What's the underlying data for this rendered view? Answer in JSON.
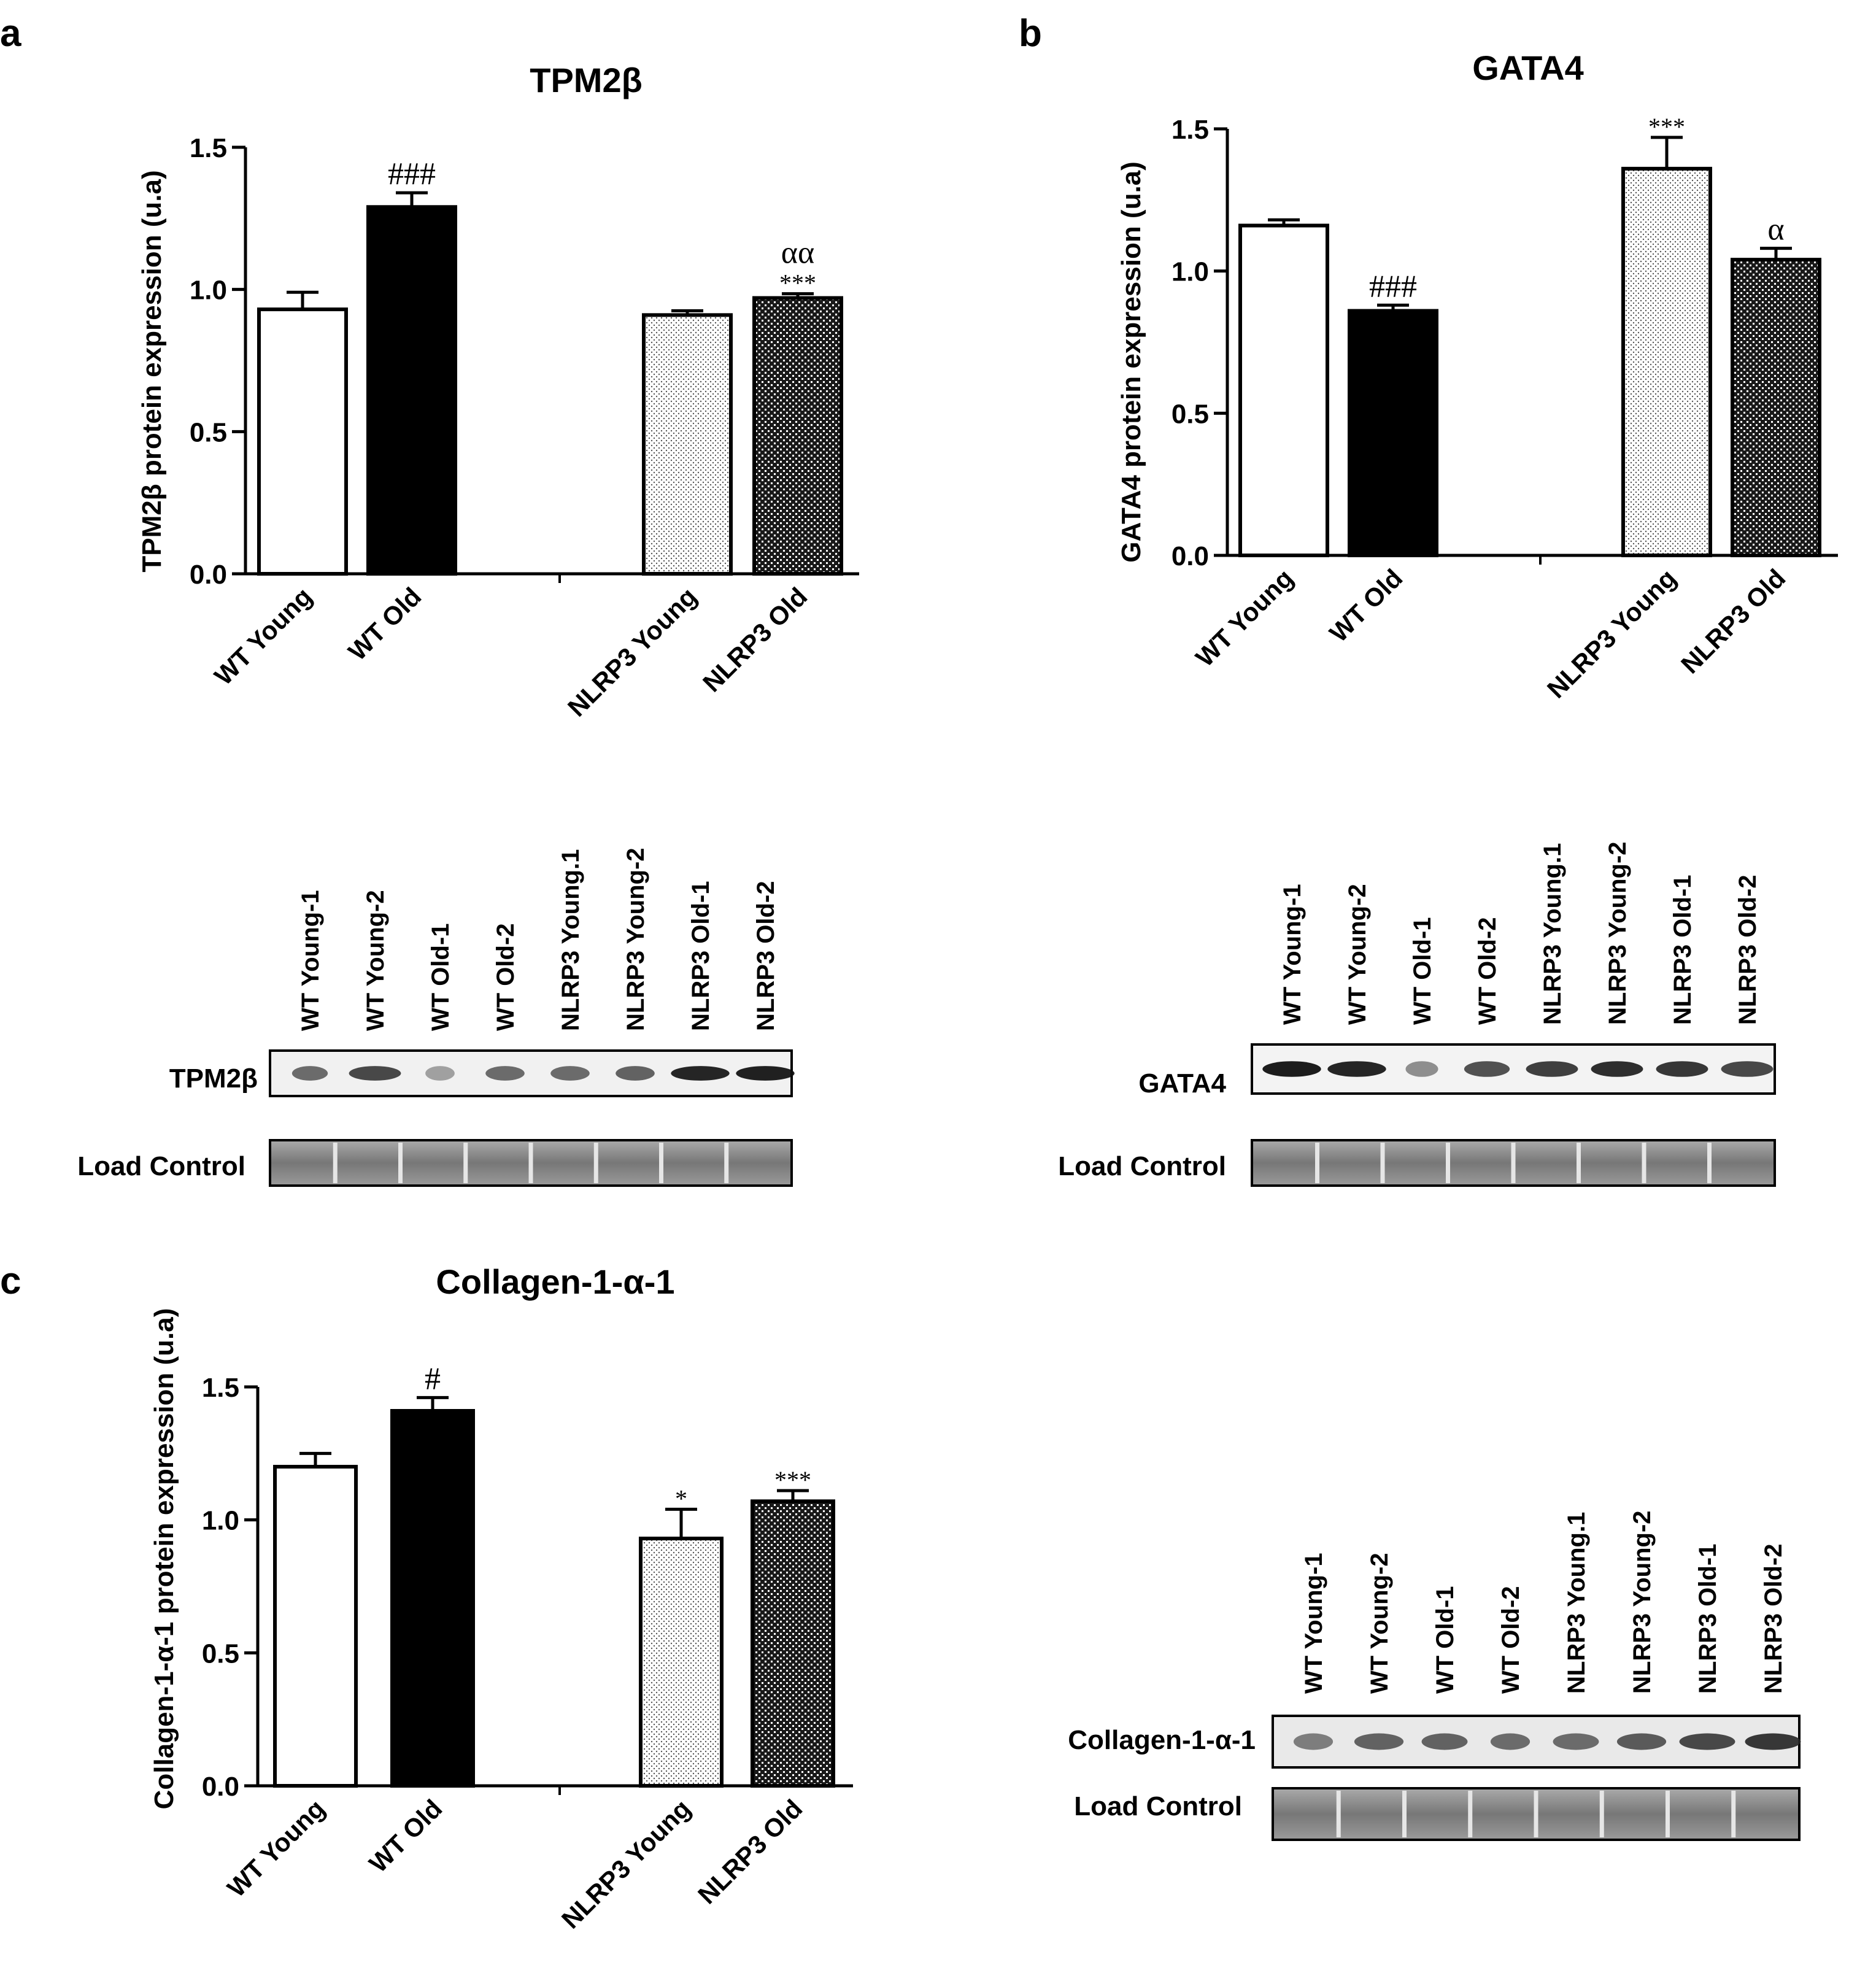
{
  "figure": {
    "blots": [
      {
        "lanes": [
          "WT Young-1",
          "WT Young-2",
          "WT Old-1",
          "WT Old-2",
          "NLRP3 Young.1",
          "NLRP3 Young-2",
          "NLRP3 Old-1",
          "NLRP3 Old-2"
        ],
        "protein_label": "TPM2β",
        "load_label": "Load Control"
      },
      {
        "lanes": [
          "WT Young-1",
          "WT Young-2",
          "WT Old-1",
          "WT Old-2",
          "NLRP3 Young.1",
          "NLRP3 Young-2",
          "NLRP3 Old-1",
          "NLRP3 Old-2"
        ],
        "protein_label": "GATA4",
        "load_label": "Load Control"
      },
      {
        "lanes": [
          "WT Young-1",
          "WT Young-2",
          "WT Old-1",
          "WT Old-2",
          "NLRP3 Young.1",
          "NLRP3 Young-2",
          "NLRP3 Old-1",
          "NLRP3 Old-2"
        ],
        "protein_label": "Collagen-1-α-1",
        "load_label": "Load Control"
      }
    ]
  },
  "chart_data": [
    {
      "panel": "a",
      "type": "bar",
      "title": "TPM2β",
      "ylabel": "TPM2β protein expression (u.a)",
      "xlabel": "",
      "ylim": [
        0,
        1.5
      ],
      "yticks": [
        "0.0",
        "0.5",
        "1.0",
        "1.5"
      ],
      "ytick_values": [
        0,
        0.5,
        1.0,
        1.5
      ],
      "categories": [
        "WT Young",
        "WT Old",
        "NLRP3 Young",
        "NLRP3 Old"
      ],
      "values": [
        0.93,
        1.29,
        0.91,
        0.97
      ],
      "errors": [
        0.06,
        0.05,
        0.015,
        0.015
      ],
      "annotations": [
        [],
        [
          "###"
        ],
        [],
        [
          "αα",
          "***"
        ]
      ]
    },
    {
      "panel": "b",
      "type": "bar",
      "title": "GATA4",
      "ylabel": "GATA4  protein expression (u.a)",
      "xlabel": "",
      "ylim": [
        0,
        1.5
      ],
      "yticks": [
        "0.0",
        "0.5",
        "1.0",
        "1.5"
      ],
      "ytick_values": [
        0,
        0.5,
        1.0,
        1.5
      ],
      "categories": [
        "WT Young",
        "WT Old",
        "NLRP3 Young",
        "NLRP3 Old"
      ],
      "values": [
        1.16,
        0.86,
        1.36,
        1.04
      ],
      "errors": [
        0.02,
        0.02,
        0.11,
        0.04
      ],
      "annotations": [
        [],
        [
          "###"
        ],
        [
          "***"
        ],
        [
          "α"
        ]
      ]
    },
    {
      "panel": "c",
      "type": "bar",
      "title": "Collagen-1-α-1",
      "ylabel": "Collagen-1-α-1 protein expression (u.a)",
      "xlabel": "",
      "ylim": [
        0,
        1.5
      ],
      "yticks": [
        "0.0",
        "0.5",
        "1.0",
        "1.5"
      ],
      "ytick_values": [
        0,
        0.5,
        1.0,
        1.5
      ],
      "categories": [
        "WT Young",
        "WT Old",
        "NLRP3 Young",
        "NLRP3 Old"
      ],
      "values": [
        1.2,
        1.41,
        0.93,
        1.07
      ],
      "errors": [
        0.05,
        0.05,
        0.11,
        0.04
      ],
      "annotations": [
        [],
        [
          "#"
        ],
        [
          "*"
        ],
        [
          "***"
        ]
      ]
    }
  ]
}
